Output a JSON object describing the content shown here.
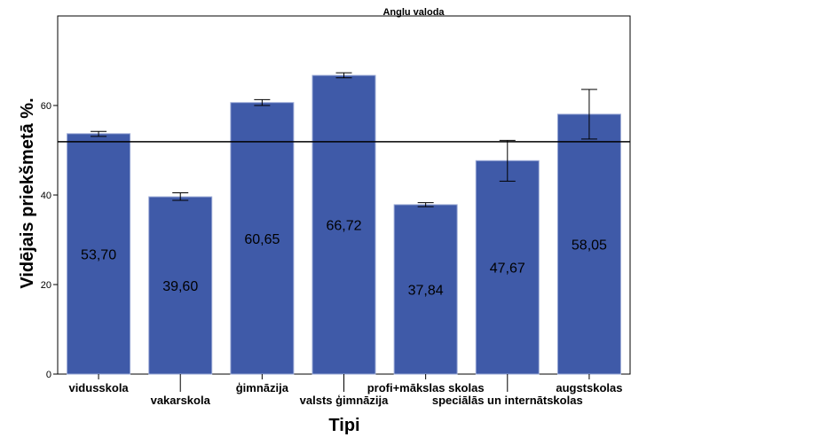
{
  "chart_data": {
    "type": "bar",
    "title": "Anglu valoda",
    "xlabel": "Tipi",
    "ylabel": "Vidējais priekšmetā %.",
    "ylim": [
      0,
      80
    ],
    "yticks": [
      0,
      20,
      40,
      60
    ],
    "categories": [
      "vidusskola",
      "vakarskola",
      "ģimnāzija",
      "valsts ģimnāzija",
      "profi+mākslas skolas",
      "speciālās un internātskolas",
      "augstskolas"
    ],
    "values": [
      53.7,
      39.6,
      60.65,
      66.72,
      37.84,
      47.67,
      58.05
    ],
    "value_labels": [
      "53,70",
      "39,60",
      "60,65",
      "66,72",
      "37,84",
      "47,67",
      "58,05"
    ],
    "error_low": [
      53.1,
      38.8,
      60.0,
      66.2,
      37.4,
      43.1,
      52.5
    ],
    "error_high": [
      54.2,
      40.5,
      61.3,
      67.3,
      38.3,
      52.2,
      63.6
    ],
    "reference_line": 51.9,
    "bar_color": "#3f5aa8",
    "grid": false,
    "legend": "none"
  }
}
